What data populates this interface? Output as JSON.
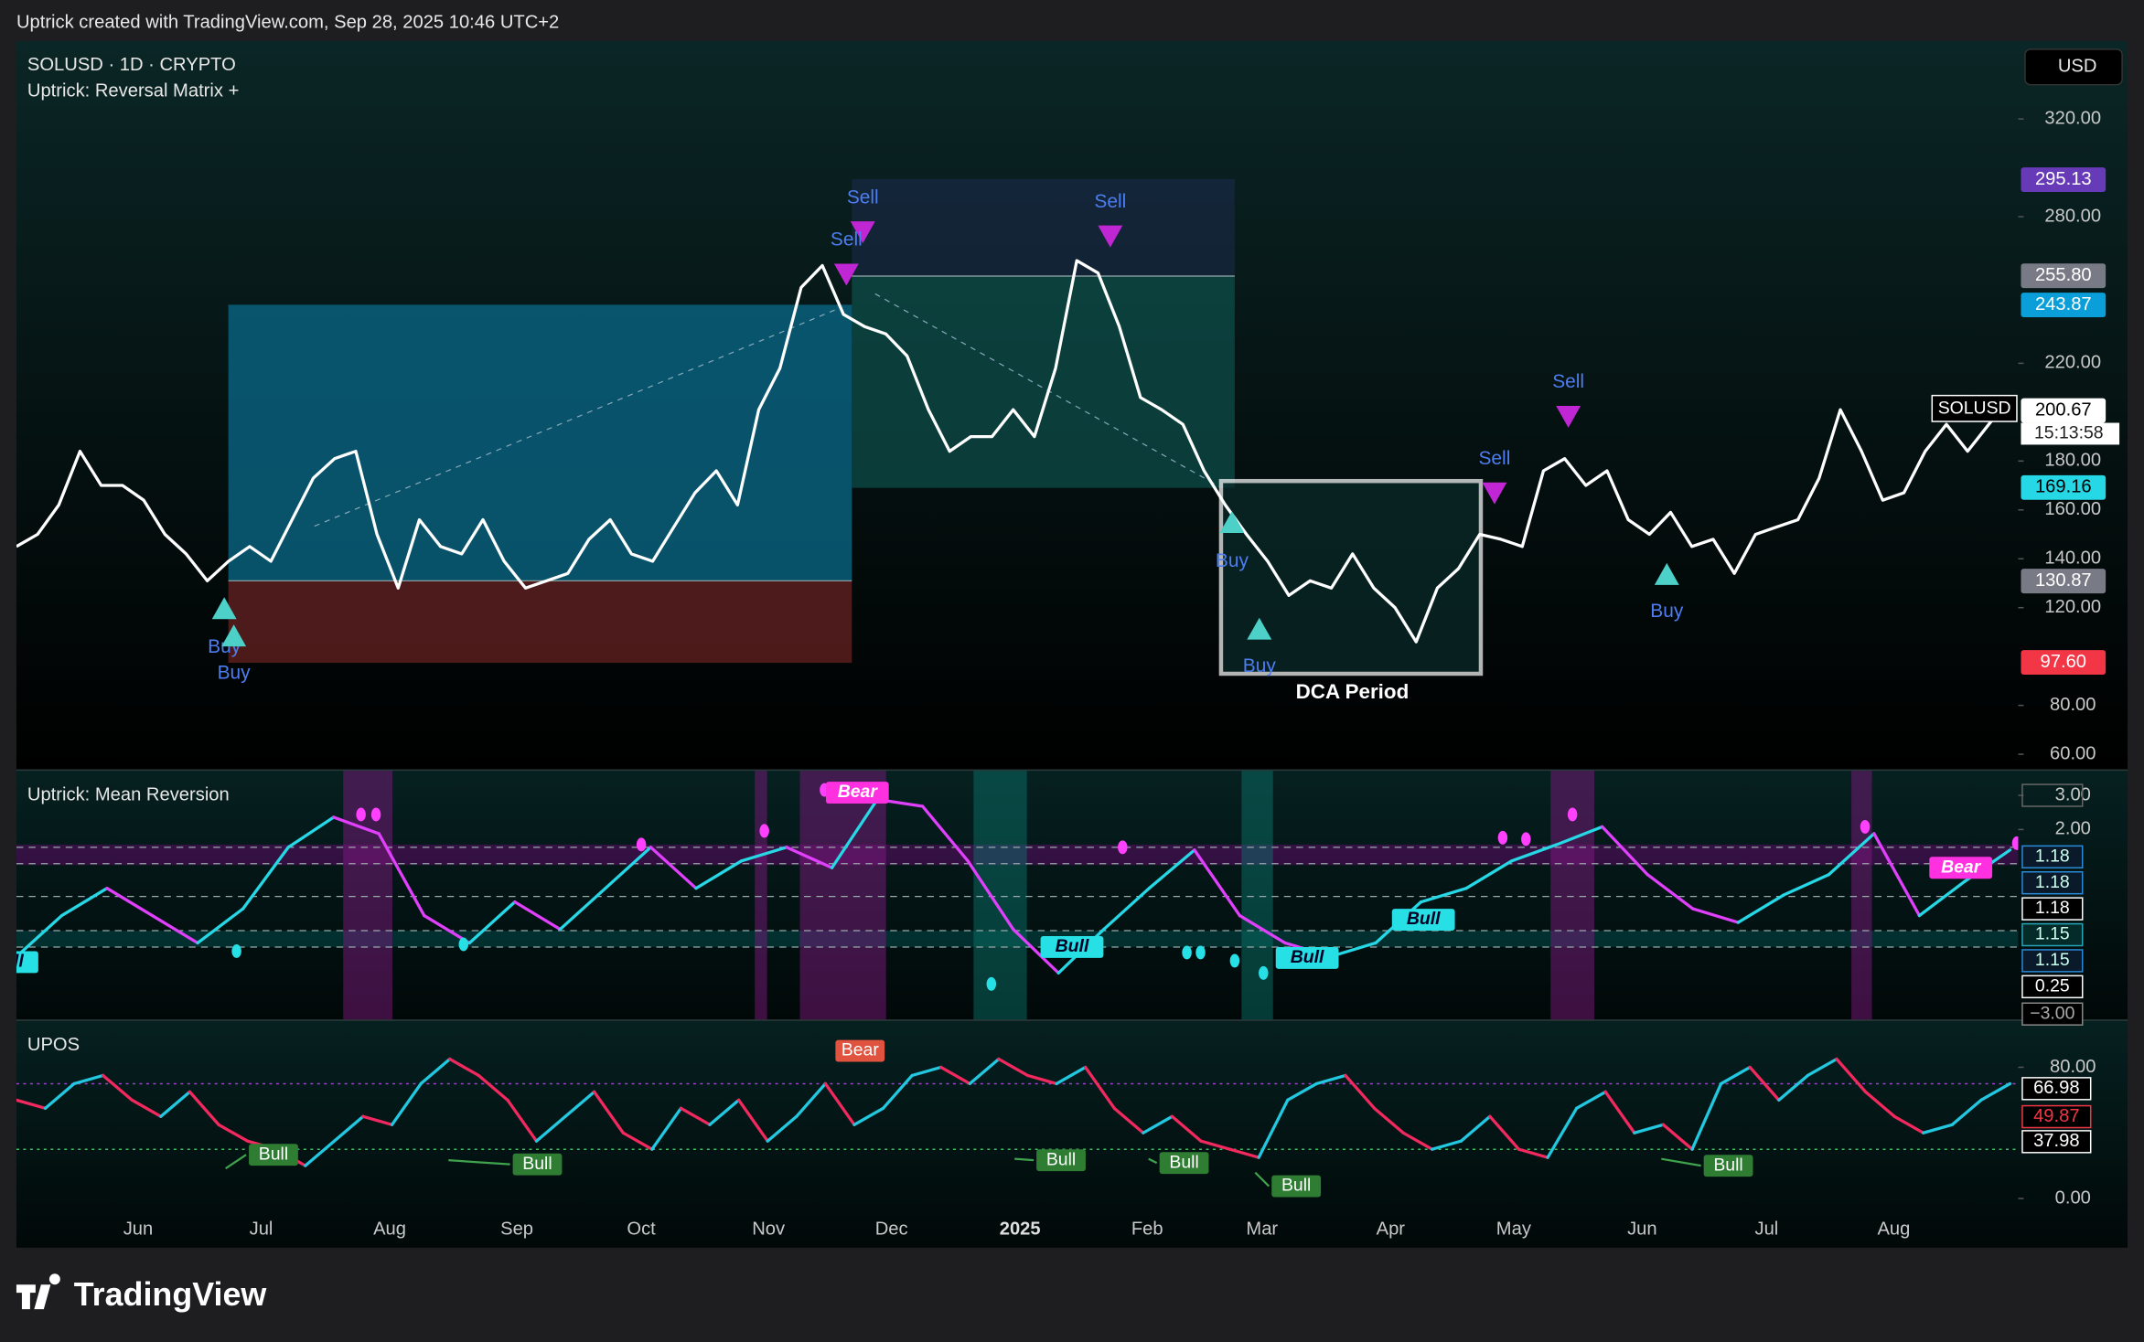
{
  "header": {
    "credit": "Uptrick created with TradingView.com, Sep 28, 2025 10:46 UTC+2"
  },
  "footer": {
    "brand": "TradingView"
  },
  "time_axis": [
    "Jun",
    "Jul",
    "Aug",
    "Sep",
    "Oct",
    "Nov",
    "Dec",
    "2025",
    "Feb",
    "Mar",
    "Apr",
    "May",
    "Jun",
    "Jul",
    "Aug"
  ],
  "chart_data": [
    {
      "type": "line",
      "title": "SOLUSD · 1D · CRYPTO",
      "subtitle": "Uptrick: Reversal Matrix +",
      "currency": "USD",
      "symbol": "SOLUSD",
      "countdown": "15:13:58",
      "color": "#ffffff",
      "values": [
        145,
        150,
        162,
        184,
        170,
        170,
        164,
        150,
        142,
        131,
        139,
        145,
        139,
        156,
        173,
        181,
        184,
        150,
        128,
        156,
        145,
        142,
        156,
        139,
        128,
        131,
        134,
        148,
        156,
        142,
        139,
        153,
        167,
        176,
        162,
        201,
        218,
        251,
        260,
        240,
        235,
        232,
        223,
        201,
        184,
        190,
        190,
        201,
        190,
        218,
        262,
        257,
        235,
        206,
        201,
        195,
        176,
        162,
        150,
        139,
        125,
        131,
        128,
        142,
        128,
        120,
        106,
        128,
        136,
        150,
        148,
        145,
        176,
        181,
        170,
        176,
        156,
        150,
        159,
        145,
        148,
        134,
        150,
        153,
        156,
        173,
        201,
        184,
        164,
        167,
        184,
        195,
        184,
        195,
        206
      ],
      "ylim": [
        53.8,
        351.9
      ],
      "yticks": [
        {
          "value": 320,
          "label": "320.00"
        },
        {
          "value": 280,
          "label": "280.00"
        },
        {
          "value": 220,
          "label": "220.00"
        },
        {
          "value": 180,
          "label": "180.00"
        },
        {
          "value": 160,
          "label": "160.00"
        },
        {
          "value": 140,
          "label": "140.00"
        },
        {
          "value": 120,
          "label": "120.00"
        },
        {
          "value": 80,
          "label": "80.00"
        },
        {
          "value": 60,
          "label": "60.00"
        }
      ],
      "price_labels": [
        295.13,
        {
          "value": 255.8,
          "label": "255.80"
        },
        243.87,
        200.67,
        169.16,
        130.87,
        {
          "value": 97.6,
          "label": "97.60"
        }
      ],
      "price_label_colors": [
        "#673ab7",
        "#787b86",
        "#0a9fd8",
        "#ffffff",
        "#26d7e6",
        "#787b86",
        "#f23645"
      ],
      "signals": [
        "Sell",
        "Sell",
        "Sell",
        "Sell",
        "Sell",
        "Buy",
        "Buy",
        "Buy",
        "Buy",
        "Buy"
      ],
      "annotation": "DCA Period"
    },
    {
      "type": "line",
      "title": "Uptrick: Mean Reversion",
      "rise_color": "#26d7e6",
      "fall_color": "#e040fb",
      "values": [
        -1.72,
        -0.52,
        0.28,
        -0.52,
        -1.32,
        -0.32,
        1.48,
        2.36,
        1.88,
        -0.52,
        -1.32,
        -0.12,
        -0.92,
        0.28,
        1.48,
        0.28,
        1.08,
        1.48,
        0.88,
        2.88,
        2.68,
        1.08,
        -0.92,
        -2.2,
        -0.92,
        0.28,
        1.4,
        -0.52,
        -1.32,
        -1.72,
        -1.32,
        -0.12,
        0.28,
        1.08,
        1.56,
        2.08,
        0.68,
        -0.32,
        -0.72,
        0.08,
        0.68,
        1.88,
        -0.52,
        0.48,
        1.4
      ],
      "ylim": [
        -3.56,
        3.72
      ],
      "yticks": [
        {
          "value": 3,
          "label": "3.00"
        },
        {
          "value": 2,
          "label": "2.00"
        }
      ],
      "badges": [
        {
          "value": 1.18,
          "label": "1.18"
        },
        {
          "value": 1.18,
          "label": "1.18"
        },
        {
          "value": 1.18,
          "label": "1.18"
        },
        {
          "value": 1.15,
          "label": "1.15"
        },
        {
          "value": 1.15,
          "label": "1.15"
        },
        0.25,
        {
          "value": -3,
          "label": "−3.00"
        }
      ],
      "tags": [
        "Bear",
        "Bear",
        "Bull",
        "Bull",
        "Bull",
        "Bull"
      ]
    },
    {
      "type": "line",
      "title": "UPOS",
      "rise_color": "#22c7e0",
      "fall_color": "#f2295f",
      "values": [
        60,
        55,
        70,
        75,
        60,
        50,
        65,
        45,
        35,
        30,
        20,
        35,
        50,
        45,
        70,
        85,
        75,
        60,
        35,
        50,
        65,
        40,
        30,
        55,
        45,
        60,
        35,
        50,
        70,
        45,
        55,
        75,
        80,
        70,
        85,
        75,
        70,
        80,
        55,
        40,
        50,
        35,
        30,
        25,
        60,
        70,
        75,
        55,
        40,
        30,
        35,
        50,
        30,
        25,
        55,
        65,
        40,
        45,
        30,
        70,
        80,
        60,
        75,
        85,
        65,
        50,
        40,
        45,
        60,
        70
      ],
      "ylim": [
        -30,
        108.3
      ],
      "yticks": [
        {
          "value": 80,
          "label": "80.00"
        },
        {
          "value": 0,
          "label": "0.00"
        }
      ],
      "badges": [
        66.98,
        49.87,
        37.98
      ],
      "tags": [
        "Bull",
        "Bull",
        "Bull",
        "Bull",
        "Bull",
        "Bull",
        "Bear"
      ]
    }
  ]
}
